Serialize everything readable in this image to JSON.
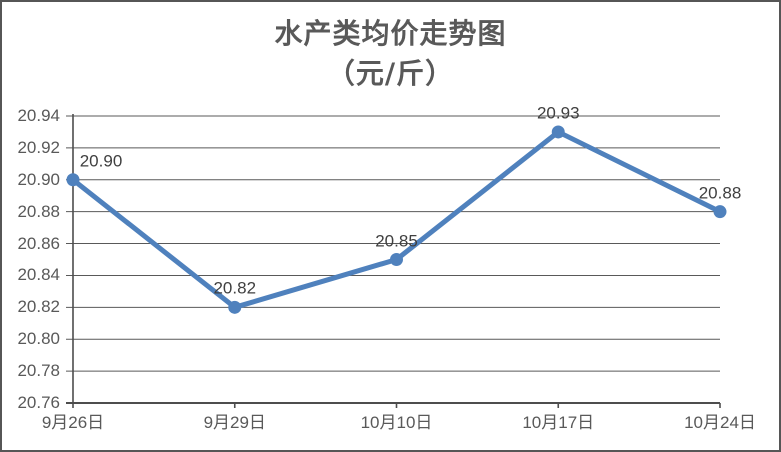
{
  "window": {
    "background": "#ffffff",
    "border_color": "#565656"
  },
  "chart_data": {
    "type": "line",
    "title": "水产类均价走势图",
    "subtitle": "（元/斤）",
    "categories": [
      "9月26日",
      "9月29日",
      "10月10日",
      "10月17日",
      "10月24日"
    ],
    "values": [
      20.9,
      20.82,
      20.85,
      20.93,
      20.88
    ],
    "data_labels": [
      "20.90",
      "20.82",
      "20.85",
      "20.93",
      "20.88"
    ],
    "ylim": [
      20.76,
      20.94
    ],
    "ytick_step": 0.02,
    "ytick_labels": [
      "20.76",
      "20.78",
      "20.80",
      "20.82",
      "20.84",
      "20.86",
      "20.88",
      "20.90",
      "20.92",
      "20.94"
    ],
    "grid": true,
    "legend": "none",
    "colors": {
      "series": "#4F81BD",
      "grid": "#595959",
      "axis": "#4d4d4d",
      "axis_text": "#595959",
      "data_label_text": "#404040",
      "title_text": "#595959"
    }
  }
}
